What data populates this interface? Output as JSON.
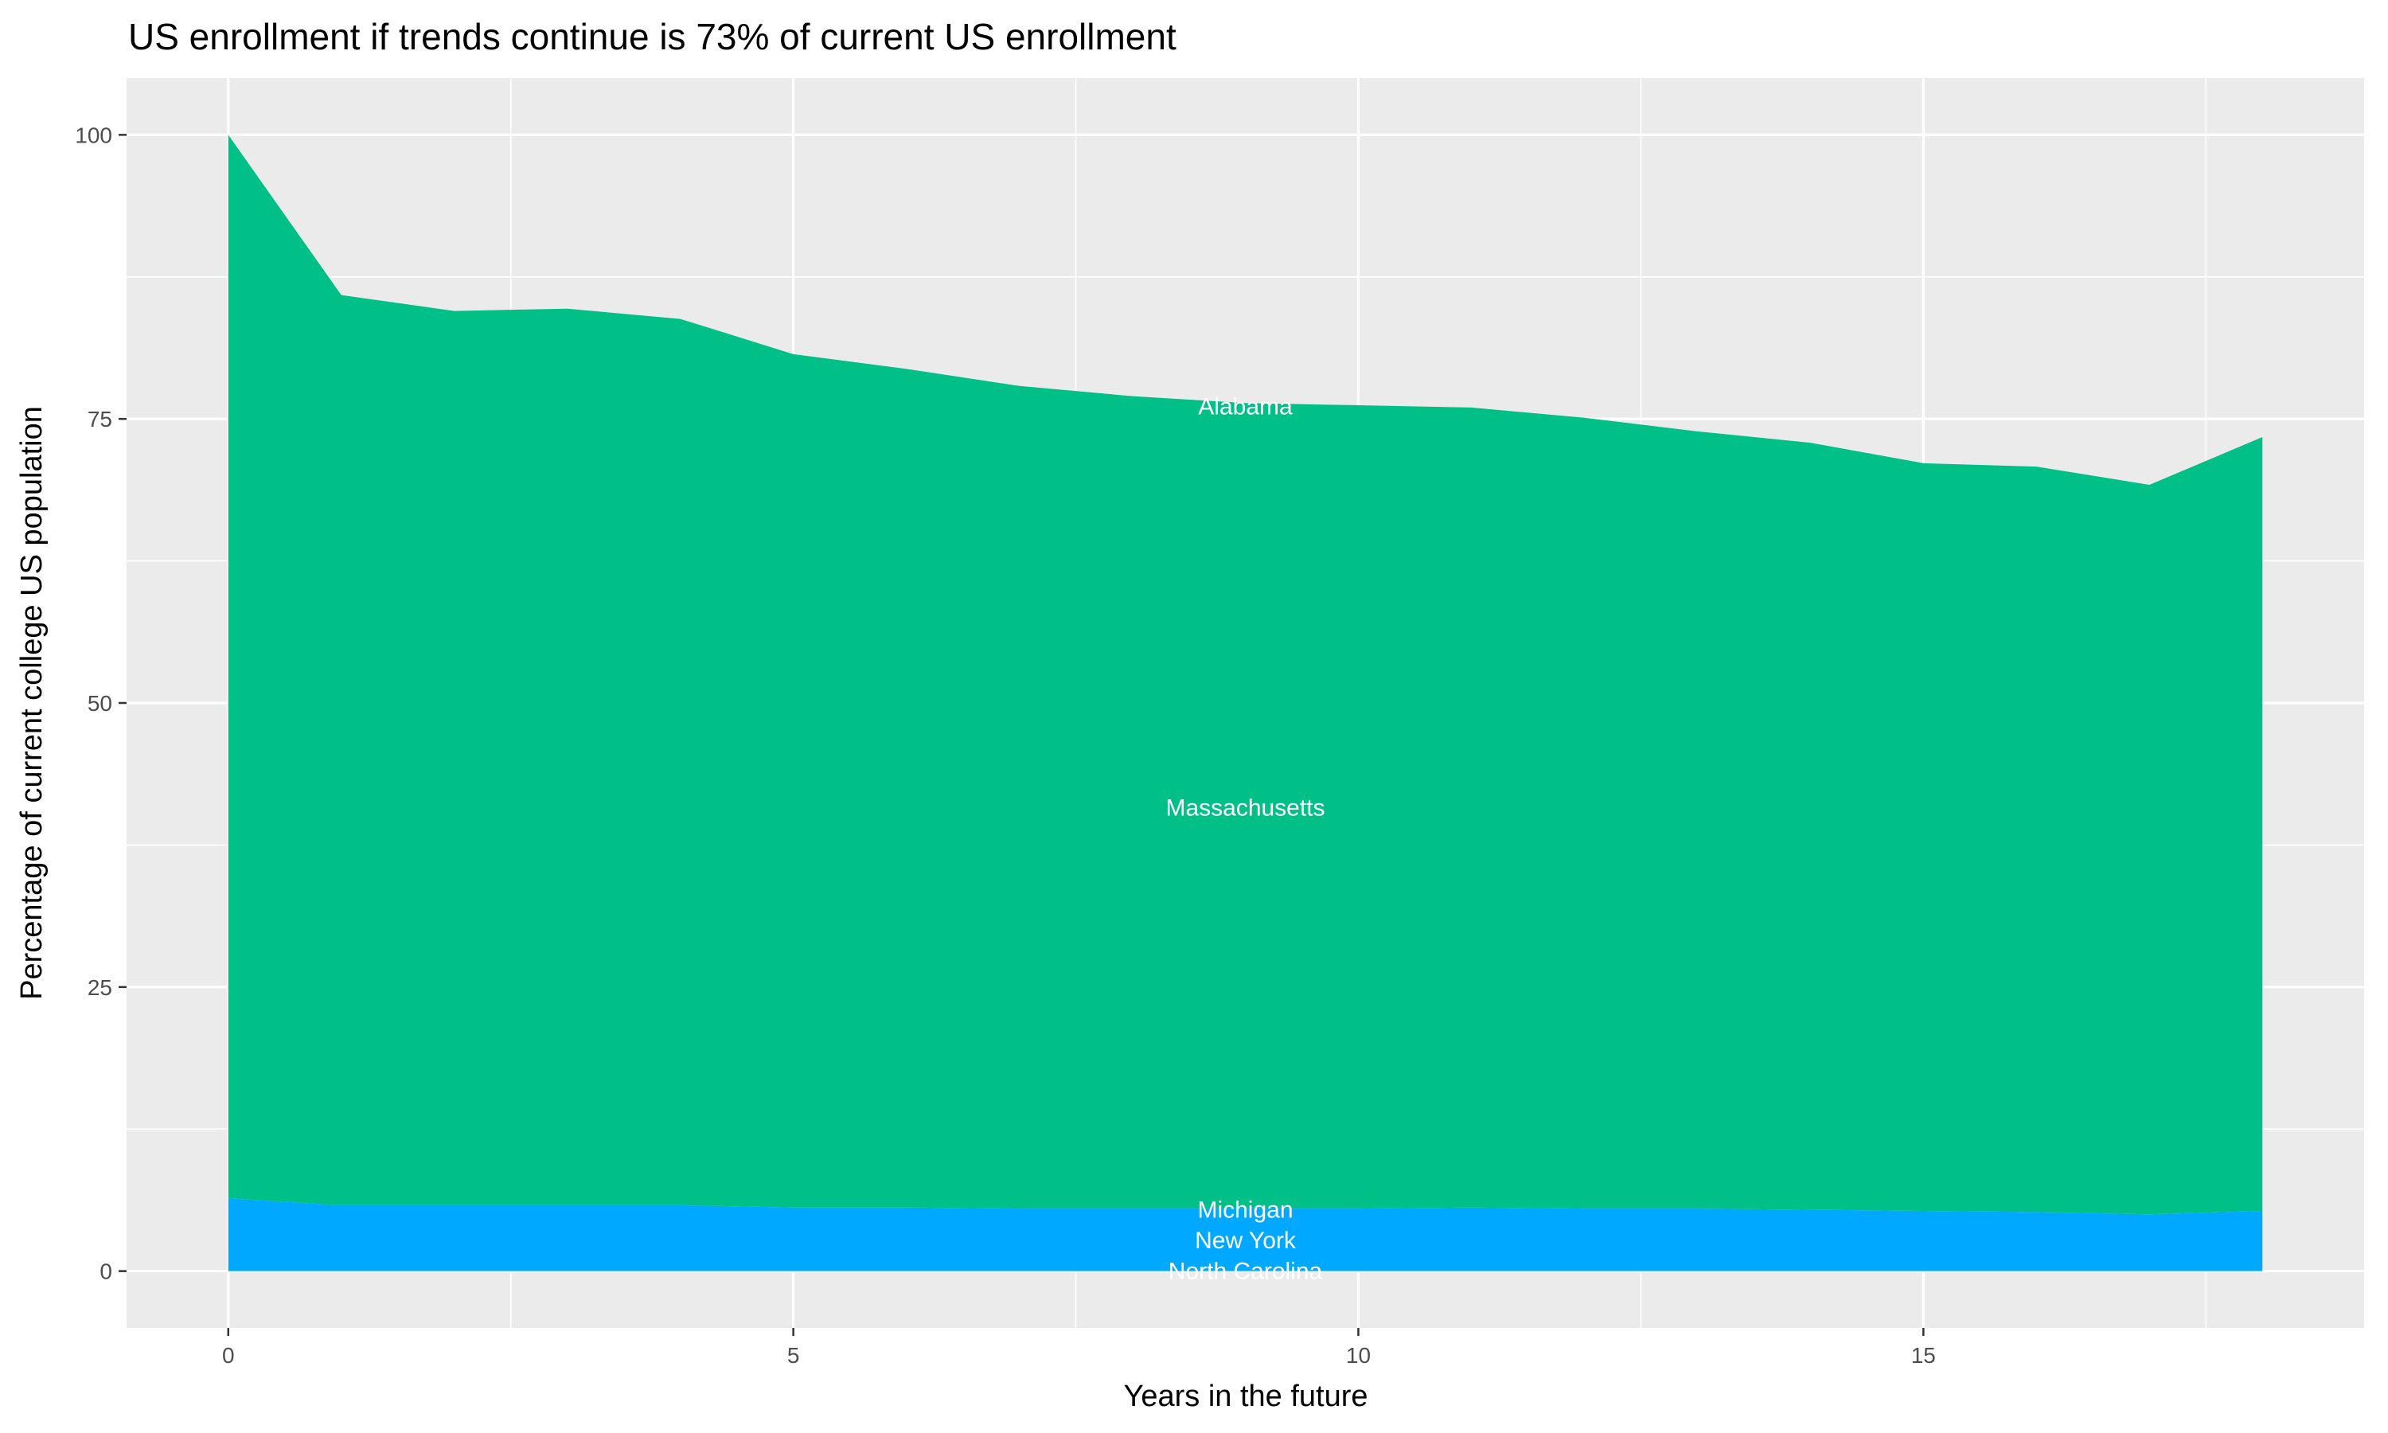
{
  "chart_data": {
    "type": "area",
    "stacked": true,
    "title": "US enrollment if trends continue is 73% of current US enrollment",
    "xlabel": "Years in the future",
    "ylabel": "Percentage of current college US population",
    "xlim": [
      -0.9,
      18.9
    ],
    "ylim": [
      -5,
      105
    ],
    "x_ticks": [
      0,
      5,
      10,
      15
    ],
    "y_ticks": [
      0,
      25,
      50,
      75,
      100
    ],
    "grid": true,
    "legend": "none",
    "x": [
      0,
      1,
      2,
      3,
      4,
      5,
      6,
      7,
      8,
      9,
      10,
      11,
      12,
      13,
      14,
      15,
      16,
      17,
      18
    ],
    "series": [
      {
        "color": "#00A9FF",
        "values": [
          6.4,
          5.8,
          5.8,
          5.8,
          5.8,
          5.6,
          5.6,
          5.5,
          5.5,
          5.5,
          5.5,
          5.6,
          5.5,
          5.5,
          5.4,
          5.3,
          5.2,
          5.0,
          5.3
        ]
      },
      {
        "color": "#00BF87",
        "values": [
          93.6,
          80.1,
          78.7,
          78.9,
          78.0,
          75.1,
          73.8,
          72.4,
          71.5,
          70.9,
          70.7,
          70.4,
          69.6,
          68.4,
          67.5,
          65.8,
          65.6,
          64.2,
          68.1
        ]
      }
    ],
    "totals": [
      100,
      85.9,
      84.5,
      84.7,
      83.8,
      80.7,
      79.4,
      77.9,
      77.0,
      76.4,
      76.2,
      76.0,
      75.1,
      73.9,
      72.9,
      71.1,
      70.8,
      69.2,
      73.4
    ],
    "annotations": [
      {
        "text": "Alabama",
        "x": 9,
        "y": 76.1
      },
      {
        "text": "Massachusetts",
        "x": 9,
        "y": 40.8
      },
      {
        "text": "Michigan",
        "x": 9,
        "y": 5.4
      },
      {
        "text": "New York",
        "x": 9,
        "y": 2.7
      },
      {
        "text": "North Carolina",
        "x": 9,
        "y": 0
      }
    ],
    "colors": {
      "panel": "#EBEBEB",
      "grid": "#FFFFFF",
      "tick": "#333333"
    }
  }
}
